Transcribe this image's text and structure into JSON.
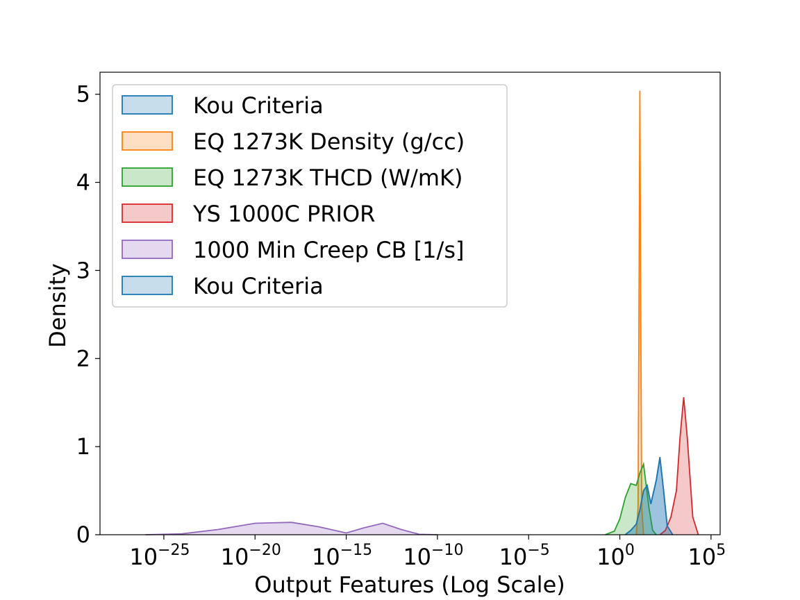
{
  "chart_data": {
    "type": "area",
    "title": "",
    "xlabel": "Output Features (Log Scale)",
    "ylabel": "Density",
    "xscale": "log",
    "xlim_log10": [
      -28.5,
      5.5
    ],
    "ylim": [
      0,
      5.25
    ],
    "grid": false,
    "legend_placement": "top-left",
    "x_ticks": [
      {
        "log10": -25,
        "base": "10",
        "exp": "−25"
      },
      {
        "log10": -20,
        "base": "10",
        "exp": "−20"
      },
      {
        "log10": -15,
        "base": "10",
        "exp": "−15"
      },
      {
        "log10": -10,
        "base": "10",
        "exp": "−10"
      },
      {
        "log10": -5,
        "base": "10",
        "exp": "−5"
      },
      {
        "log10": 0,
        "base": "10",
        "exp": "0"
      },
      {
        "log10": 5,
        "base": "10",
        "exp": "5"
      }
    ],
    "y_ticks": [
      0,
      1,
      2,
      3,
      4,
      5
    ],
    "series": [
      {
        "name": "Kou Criteria",
        "color": "#1f77b4",
        "x_log10": [
          0.3,
          0.6,
          0.9,
          1.1,
          1.3,
          1.5,
          1.7,
          2.0,
          2.2,
          2.4,
          2.6,
          2.9
        ],
        "y": [
          0,
          0.05,
          0.12,
          0.28,
          0.5,
          0.56,
          0.35,
          0.62,
          0.88,
          0.5,
          0.1,
          0
        ]
      },
      {
        "name": "EQ 1273K Density (g/cc)",
        "color": "#ff7f0e",
        "x_log10": [
          0.9,
          1.0,
          1.05,
          1.1,
          1.15,
          1.2,
          1.3
        ],
        "y": [
          0,
          0.3,
          2.5,
          5.04,
          2.5,
          0.3,
          0
        ]
      },
      {
        "name": "EQ 1273K THCD (W/mK)",
        "color": "#2ca02c",
        "x_log10": [
          -0.8,
          -0.3,
          0.0,
          0.3,
          0.6,
          0.9,
          1.1,
          1.3,
          1.6,
          1.8,
          2.0
        ],
        "y": [
          0,
          0.04,
          0.18,
          0.42,
          0.58,
          0.56,
          0.7,
          0.8,
          0.3,
          0.05,
          0
        ]
      },
      {
        "name": "YS 1000C PRIOR",
        "color": "#d62728",
        "x_log10": [
          2.2,
          2.5,
          2.8,
          3.1,
          3.3,
          3.5,
          3.7,
          4.0,
          4.3
        ],
        "y": [
          0,
          0.05,
          0.2,
          0.5,
          1.1,
          1.56,
          1.1,
          0.2,
          0
        ]
      },
      {
        "name": "1000 Min Creep CB [1/s]",
        "color": "#9467bd",
        "x_log10": [
          -26,
          -24,
          -22,
          -20,
          -18,
          -16.5,
          -15,
          -14,
          -13,
          -12,
          -11,
          -10
        ],
        "y": [
          0,
          0.01,
          0.06,
          0.13,
          0.14,
          0.09,
          0.02,
          0.08,
          0.13,
          0.06,
          0.005,
          0
        ]
      },
      {
        "name": "Kou Criteria",
        "color": "#1f77b4",
        "x_log10": [
          0.3,
          0.6,
          0.9,
          1.1,
          1.3,
          1.5,
          1.7,
          2.0,
          2.2,
          2.4,
          2.6,
          2.9
        ],
        "y": [
          0,
          0.05,
          0.12,
          0.28,
          0.5,
          0.56,
          0.35,
          0.62,
          0.88,
          0.5,
          0.1,
          0
        ]
      }
    ]
  }
}
